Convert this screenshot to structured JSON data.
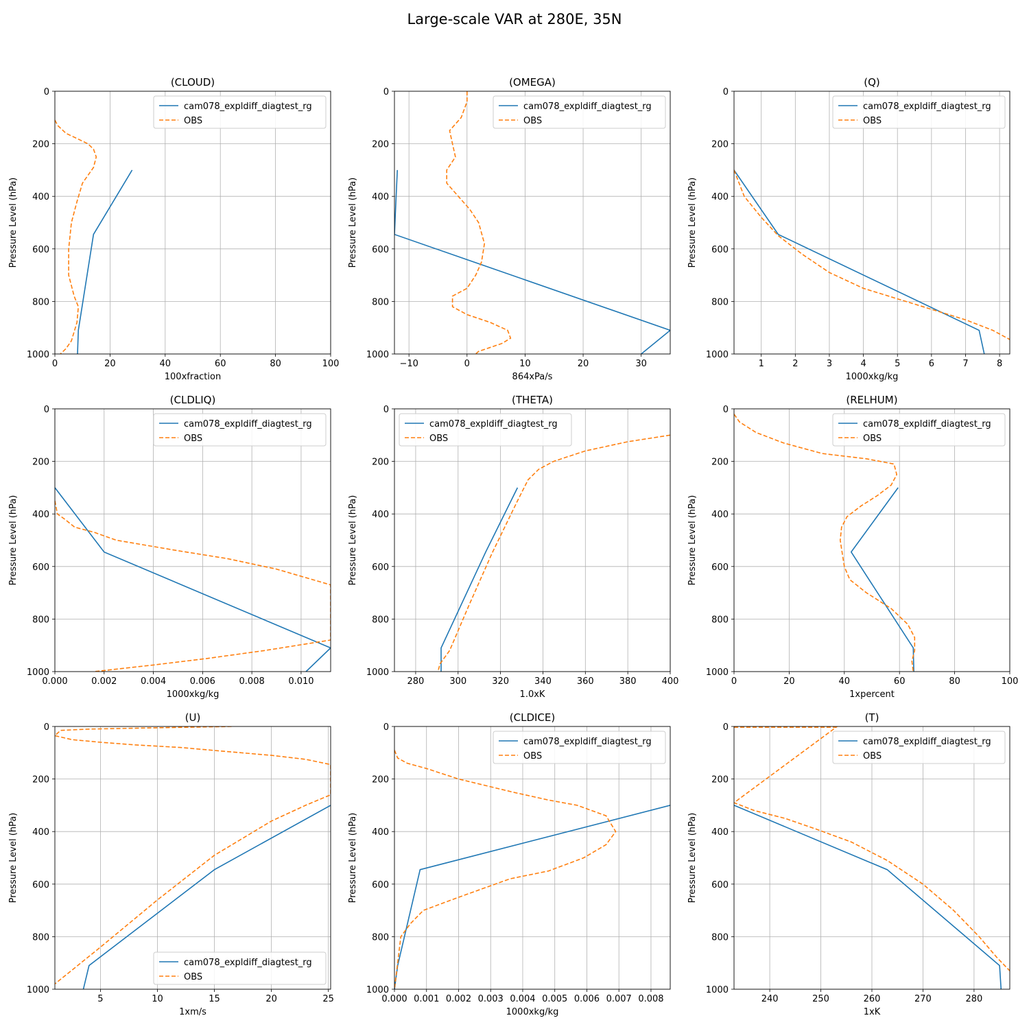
{
  "figure": {
    "suptitle": "Large-scale VAR at 280E, 35N",
    "ylabel": "Pressure Level (hPa)",
    "model_name": "cam078_expldiff_diagtest_rg",
    "obs_name": "OBS",
    "colors": {
      "model": "#1f77b4",
      "obs": "#ff7f0e",
      "grid": "#b0b0b0"
    }
  },
  "chart_data": [
    {
      "type": "line",
      "title": "(CLOUD)",
      "xlabel": "100xfraction",
      "xlim": [
        0,
        100
      ],
      "ylim": [
        1000,
        0
      ],
      "xticks": [
        0,
        20,
        40,
        60,
        80,
        100
      ],
      "xtick_labels": [
        "0",
        "20",
        "40",
        "60",
        "80",
        "100"
      ],
      "yticks": [
        0,
        200,
        400,
        600,
        800,
        1000
      ],
      "legend": "top-right",
      "series": [
        {
          "name": "cam078_expldiff_diagtest_rg",
          "style": "solid",
          "x": [
            28,
            14,
            8.5,
            8.2
          ],
          "y": [
            300,
            545,
            910,
            1000
          ]
        },
        {
          "name": "OBS",
          "style": "dashed",
          "x": [
            0,
            1,
            4,
            8,
            12,
            14,
            15,
            14,
            10,
            8,
            6,
            5,
            5,
            7,
            8.5,
            8,
            6,
            4,
            2
          ],
          "y": [
            110,
            130,
            160,
            180,
            200,
            220,
            250,
            290,
            350,
            420,
            500,
            600,
            700,
            780,
            820,
            880,
            950,
            980,
            1000
          ]
        }
      ]
    },
    {
      "type": "line",
      "title": "(OMEGA)",
      "xlabel": "864xPa/s",
      "xlim": [
        -12.5,
        35
      ],
      "ylim": [
        1000,
        0
      ],
      "xticks": [
        -10,
        0,
        10,
        20,
        30
      ],
      "xtick_labels": [
        "−10",
        "0",
        "10",
        "20",
        "30"
      ],
      "yticks": [
        0,
        200,
        400,
        600,
        800,
        1000
      ],
      "legend": "top-right",
      "series": [
        {
          "name": "cam078_expldiff_diagtest_rg",
          "style": "solid",
          "x": [
            -12,
            -12.5,
            35,
            30
          ],
          "y": [
            300,
            545,
            910,
            1000
          ]
        },
        {
          "name": "OBS",
          "style": "dashed",
          "x": [
            0,
            0,
            -1,
            -3,
            -2.5,
            -2,
            -3.5,
            -3.5,
            -1.5,
            0.5,
            2,
            3,
            2.5,
            1.5,
            0,
            -2.5,
            -2.5,
            0,
            4,
            7,
            7.5,
            6,
            2,
            1.5
          ],
          "y": [
            0,
            40,
            100,
            150,
            200,
            250,
            300,
            350,
            400,
            450,
            500,
            580,
            650,
            700,
            750,
            780,
            820,
            850,
            880,
            910,
            940,
            960,
            990,
            1000
          ]
        }
      ]
    },
    {
      "type": "line",
      "title": "(Q)",
      "xlabel": "1000xkg/kg",
      "xlim": [
        0.2,
        8.3
      ],
      "ylim": [
        1000,
        0
      ],
      "xticks": [
        1,
        2,
        3,
        4,
        5,
        6,
        7,
        8
      ],
      "xtick_labels": [
        "1",
        "2",
        "3",
        "4",
        "5",
        "6",
        "7",
        "8"
      ],
      "yticks": [
        0,
        200,
        400,
        600,
        800,
        1000
      ],
      "legend": "top-right",
      "series": [
        {
          "name": "cam078_expldiff_diagtest_rg",
          "style": "solid",
          "x": [
            0.2,
            1.5,
            7.4,
            7.55
          ],
          "y": [
            300,
            545,
            910,
            1000
          ]
        },
        {
          "name": "OBS",
          "style": "dashed",
          "x": [
            0.2,
            0.5,
            1.0,
            1.5,
            2.2,
            3.0,
            4.0,
            5.0,
            6.0,
            7.0,
            7.8,
            8.3
          ],
          "y": [
            300,
            400,
            480,
            550,
            620,
            690,
            750,
            790,
            830,
            870,
            910,
            945
          ]
        }
      ]
    },
    {
      "type": "line",
      "title": "(CLDLIQ)",
      "xlabel": "1000xkg/kg",
      "xlim": [
        0,
        0.0112
      ],
      "ylim": [
        1000,
        0
      ],
      "xticks": [
        0,
        0.002,
        0.004,
        0.006,
        0.008,
        0.01
      ],
      "xtick_labels": [
        "0.000",
        "0.002",
        "0.004",
        "0.006",
        "0.008",
        "0.010"
      ],
      "yticks": [
        0,
        200,
        400,
        600,
        800,
        1000
      ],
      "legend": "top-right",
      "series": [
        {
          "name": "cam078_expldiff_diagtest_rg",
          "style": "solid",
          "x": [
            0,
            0.002,
            0.0112,
            0.0102
          ],
          "y": [
            300,
            545,
            910,
            1000
          ]
        },
        {
          "name": "OBS",
          "style": "dashed",
          "x": [
            0,
            0.0001,
            0.0004,
            0.0008,
            0.0016,
            0.0025,
            0.005,
            0.007,
            0.009,
            0.0112,
            0.0112,
            0.0085,
            0.0062,
            0.004,
            0.0016
          ],
          "y": [
            350,
            400,
            420,
            450,
            470,
            500,
            540,
            570,
            610,
            670,
            880,
            920,
            950,
            975,
            1000
          ]
        }
      ]
    },
    {
      "type": "line",
      "title": "(THETA)",
      "xlabel": "1.0xK",
      "xlim": [
        270,
        400
      ],
      "ylim": [
        1000,
        0
      ],
      "xticks": [
        280,
        300,
        320,
        340,
        360,
        380,
        400
      ],
      "xtick_labels": [
        "280",
        "300",
        "320",
        "340",
        "360",
        "380",
        "400"
      ],
      "yticks": [
        0,
        200,
        400,
        600,
        800,
        1000
      ],
      "legend": "top-left",
      "series": [
        {
          "name": "cam078_expldiff_diagtest_rg",
          "style": "solid",
          "x": [
            328,
            313,
            292,
            292
          ],
          "y": [
            300,
            545,
            910,
            1000
          ]
        },
        {
          "name": "OBS",
          "style": "dashed",
          "x": [
            400,
            380,
            360,
            345,
            338,
            333,
            328,
            316,
            305,
            296,
            291.5,
            290.5
          ],
          "y": [
            100,
            125,
            160,
            200,
            230,
            270,
            350,
            550,
            750,
            920,
            970,
            1000
          ]
        }
      ]
    },
    {
      "type": "line",
      "title": "(RELHUM)",
      "xlabel": "1xpercent",
      "xlim": [
        0,
        100
      ],
      "ylim": [
        1000,
        0
      ],
      "xticks": [
        0,
        20,
        40,
        60,
        80,
        100
      ],
      "xtick_labels": [
        "0",
        "20",
        "40",
        "60",
        "80",
        "100"
      ],
      "yticks": [
        0,
        200,
        400,
        600,
        800,
        1000
      ],
      "legend": "top-right",
      "series": [
        {
          "name": "cam078_expldiff_diagtest_rg",
          "style": "solid",
          "x": [
            59.5,
            42.5,
            65,
            65.2
          ],
          "y": [
            300,
            545,
            910,
            1000
          ]
        },
        {
          "name": "OBS",
          "style": "dashed",
          "x": [
            0,
            2,
            8,
            18,
            32,
            48,
            58,
            59,
            57,
            52,
            46,
            41,
            39,
            38.5,
            40,
            42,
            48,
            57,
            63,
            65.5,
            65.5,
            64.5,
            65
          ],
          "y": [
            20,
            50,
            90,
            130,
            170,
            190,
            210,
            250,
            290,
            330,
            370,
            410,
            450,
            500,
            600,
            650,
            700,
            760,
            820,
            870,
            920,
            960,
            1000
          ]
        }
      ]
    },
    {
      "type": "line",
      "title": "(U)",
      "xlabel": "1xm/s",
      "xlim": [
        1,
        25.2
      ],
      "ylim": [
        1000,
        0
      ],
      "xticks": [
        5,
        10,
        15,
        20,
        25
      ],
      "xtick_labels": [
        "5",
        "10",
        "15",
        "20",
        "25"
      ],
      "yticks": [
        0,
        200,
        400,
        600,
        800,
        1000
      ],
      "legend": "bottom-right",
      "series": [
        {
          "name": "cam078_expldiff_diagtest_rg",
          "style": "solid",
          "x": [
            25.2,
            15,
            4,
            3.5
          ],
          "y": [
            300,
            545,
            910,
            1000
          ]
        },
        {
          "name": "OBS",
          "style": "dashed",
          "x": [
            16.5,
            10,
            4,
            1.5,
            1,
            2.5,
            5,
            8,
            12,
            16,
            20,
            23,
            25.2,
            25.2,
            23,
            20,
            15,
            10,
            5,
            3,
            1
          ],
          "y": [
            0,
            5,
            10,
            15,
            35,
            50,
            60,
            70,
            80,
            95,
            110,
            125,
            145,
            260,
            300,
            360,
            490,
            660,
            840,
            910,
            980
          ]
        }
      ]
    },
    {
      "type": "line",
      "title": "(CLDICE)",
      "xlabel": "1000xkg/kg",
      "xlim": [
        0,
        0.0086
      ],
      "ylim": [
        1000,
        0
      ],
      "xticks": [
        0,
        0.001,
        0.002,
        0.003,
        0.004,
        0.005,
        0.006,
        0.007,
        0.008
      ],
      "xtick_labels": [
        "0.000",
        "0.001",
        "0.002",
        "0.003",
        "0.004",
        "0.005",
        "0.006",
        "0.007",
        "0.008"
      ],
      "yticks": [
        0,
        200,
        400,
        600,
        800,
        1000
      ],
      "legend": "top-right",
      "series": [
        {
          "name": "cam078_expldiff_diagtest_rg",
          "style": "solid",
          "x": [
            0.0086,
            0.0008,
            0.0001,
            0
          ],
          "y": [
            300,
            545,
            910,
            1000
          ]
        },
        {
          "name": "OBS",
          "style": "dashed",
          "x": [
            0,
            0.0001,
            0.0004,
            0.001,
            0.002,
            0.0037,
            0.0048,
            0.0057,
            0.0066,
            0.0069,
            0.0066,
            0.0059,
            0.0048,
            0.0036,
            0.002,
            0.0009,
            0.0005,
            0.0002,
            0.0001,
            0
          ],
          "y": [
            90,
            120,
            140,
            160,
            200,
            250,
            280,
            300,
            340,
            400,
            450,
            500,
            550,
            580,
            650,
            700,
            750,
            800,
            900,
            1000
          ]
        }
      ]
    },
    {
      "type": "line",
      "title": "(T)",
      "xlabel": "1xK",
      "xlim": [
        233,
        287
      ],
      "ylim": [
        1000,
        0
      ],
      "xticks": [
        240,
        250,
        260,
        270,
        280
      ],
      "xtick_labels": [
        "240",
        "250",
        "260",
        "270",
        "280"
      ],
      "yticks": [
        0,
        200,
        400,
        600,
        800,
        1000
      ],
      "legend": "top-right",
      "series": [
        {
          "name": "cam078_expldiff_diagtest_rg",
          "style": "solid",
          "x": [
            233,
            263,
            285,
            285.3
          ],
          "y": [
            300,
            545,
            910,
            1000
          ]
        },
        {
          "name": "OBS",
          "style": "dashed",
          "x": [
            233,
            253,
            233,
            237,
            243,
            249,
            256,
            263,
            270,
            276,
            281,
            284.5,
            287
          ],
          "y": [
            3,
            3,
            290,
            320,
            350,
            390,
            440,
            510,
            600,
            700,
            800,
            880,
            930
          ]
        }
      ]
    }
  ]
}
